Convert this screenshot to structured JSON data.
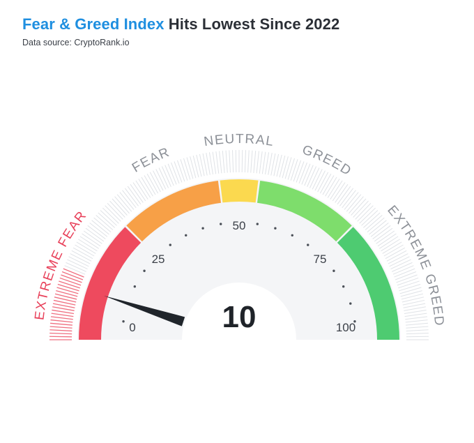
{
  "header": {
    "title_highlight": "Fear & Greed Index",
    "title_rest": " Hits Lowest Since 2022",
    "subtitle": "Data source: CryptoRank.io"
  },
  "chart_data": {
    "type": "gauge",
    "value": 10,
    "value_label": "10",
    "range": [
      0,
      100
    ],
    "ticks": [
      {
        "value": 0,
        "label": "0"
      },
      {
        "value": 25,
        "label": "25"
      },
      {
        "value": 50,
        "label": "50"
      },
      {
        "value": 75,
        "label": "75"
      },
      {
        "value": 100,
        "label": "100"
      }
    ],
    "zones": [
      {
        "name": "EXTREME FEAR",
        "from": 0,
        "to": 25,
        "color": "#ee4a5e"
      },
      {
        "name": "FEAR",
        "from": 25,
        "to": 46,
        "color": "#f7a047"
      },
      {
        "name": "NEUTRAL",
        "from": 46,
        "to": 54,
        "color": "#fbd94f"
      },
      {
        "name": "GREED",
        "from": 54,
        "to": 75,
        "color": "#7edd6c"
      },
      {
        "name": "EXTREME GREED",
        "from": 75,
        "to": 100,
        "color": "#4ecb71"
      }
    ],
    "colors": {
      "title_highlight": "#1f8fe0",
      "extreme_fear_label": "#e8415a",
      "category_label": "#8c9097",
      "needle": "#20252b",
      "face": "#f4f5f7"
    }
  }
}
